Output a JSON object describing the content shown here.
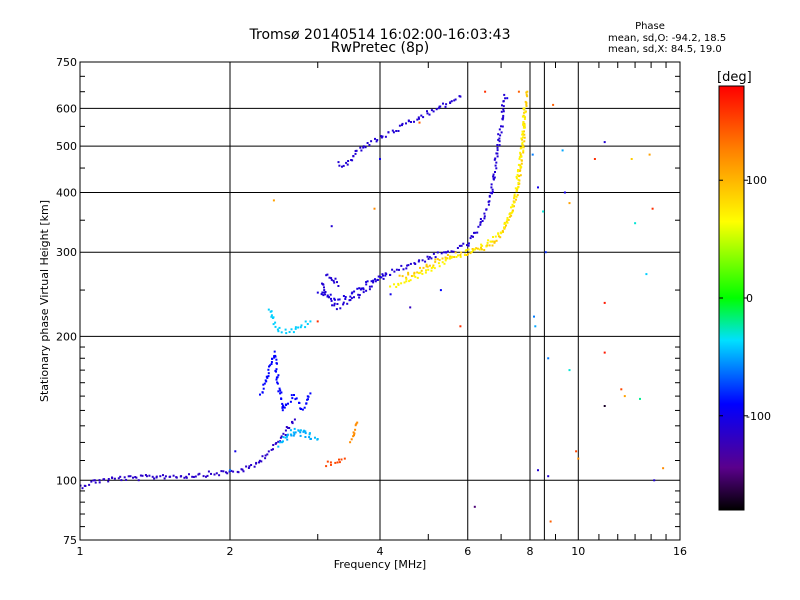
{
  "header": {
    "title_line1": "Tromsø 20140514 16:02:00-16:03:43",
    "title_line2": "RwPretec (8p)",
    "phase_title": "Phase",
    "phase_o": "mean, sd,O: -94.2, 18.5",
    "phase_x": "mean, sd,X:  84.5, 19.0"
  },
  "colorbar": {
    "label": "[deg]",
    "range": [
      -180,
      180
    ],
    "ticks": [
      "100",
      "0",
      "-100"
    ],
    "tick_values": [
      100,
      0,
      -100
    ]
  },
  "chart_data": {
    "type": "scatter",
    "title": "Tromsø 20140514 16:02:00-16:03:43",
    "subtitle": "RwPretec (8p)",
    "xlabel": "Frequency [MHz]",
    "ylabel": "Stationary phase Virtual Height [km]",
    "xscale": "log",
    "yscale": "log",
    "xlim": [
      1,
      16
    ],
    "ylim": [
      75,
      750
    ],
    "xticks": [
      1,
      2,
      4,
      6,
      8,
      10,
      16
    ],
    "xtick_labels": [
      "1",
      "2",
      "4",
      "6",
      "8",
      "10",
      "16"
    ],
    "yticks": [
      75,
      100,
      200,
      300,
      400,
      500,
      600,
      750
    ],
    "ytick_labels": [
      "75",
      "100",
      "200",
      "300",
      "400",
      "500",
      "600",
      "750"
    ],
    "grid": true,
    "color_by": "phase [deg]",
    "traces": [
      {
        "phase": -115,
        "points": [
          [
            1.0,
            97
          ],
          [
            1.05,
            99
          ],
          [
            1.1,
            100
          ],
          [
            1.2,
            101
          ],
          [
            1.3,
            101
          ],
          [
            1.45,
            102
          ],
          [
            1.6,
            102
          ],
          [
            1.8,
            103
          ],
          [
            2.0,
            104
          ],
          [
            2.1,
            105
          ],
          [
            2.2,
            106
          ],
          [
            2.3,
            110
          ],
          [
            2.4,
            115
          ],
          [
            2.5,
            120
          ],
          [
            2.6,
            128
          ],
          [
            2.7,
            134
          ]
        ]
      },
      {
        "phase": -40,
        "points": [
          [
            2.4,
            230
          ],
          [
            2.45,
            215
          ],
          [
            2.5,
            207
          ],
          [
            2.6,
            205
          ],
          [
            2.7,
            206
          ],
          [
            2.8,
            210
          ],
          [
            2.9,
            215
          ]
        ]
      },
      {
        "phase": -45,
        "points": [
          [
            2.5,
            118
          ],
          [
            2.6,
            124
          ],
          [
            2.7,
            128
          ],
          [
            2.8,
            127
          ],
          [
            2.9,
            124
          ],
          [
            3.0,
            122
          ]
        ]
      },
      {
        "phase": -110,
        "points": [
          [
            3.05,
            260
          ],
          [
            3.1,
            245
          ],
          [
            3.2,
            235
          ],
          [
            3.3,
            230
          ],
          [
            3.4,
            233
          ],
          [
            3.5,
            237
          ],
          [
            3.6,
            242
          ],
          [
            3.7,
            247
          ],
          [
            3.8,
            252
          ],
          [
            3.9,
            258
          ],
          [
            4.0,
            264
          ],
          [
            4.2,
            272
          ],
          [
            4.5,
            280
          ],
          [
            4.8,
            288
          ],
          [
            5.0,
            292
          ],
          [
            5.3,
            297
          ],
          [
            5.6,
            302
          ],
          [
            6.0,
            312
          ],
          [
            6.3,
            335
          ],
          [
            6.5,
            360
          ],
          [
            6.7,
            400
          ],
          [
            6.8,
            450
          ],
          [
            6.9,
            500
          ],
          [
            7.0,
            550
          ],
          [
            7.05,
            600
          ],
          [
            7.1,
            640
          ]
        ]
      },
      {
        "phase": -105,
        "points": [
          [
            3.0,
            245
          ],
          [
            3.1,
            248
          ],
          [
            3.2,
            240
          ],
          [
            3.3,
            238
          ],
          [
            3.5,
            245
          ],
          [
            3.7,
            255
          ],
          [
            3.9,
            262
          ],
          [
            4.1,
            268
          ]
        ]
      },
      {
        "phase": -110,
        "points": [
          [
            3.1,
            270
          ],
          [
            3.2,
            265
          ],
          [
            3.3,
            255
          ]
        ]
      },
      {
        "phase": -110,
        "points": [
          [
            3.3,
            460
          ],
          [
            3.4,
            455
          ],
          [
            3.5,
            465
          ],
          [
            3.6,
            490
          ],
          [
            3.8,
            505
          ],
          [
            4.0,
            520
          ],
          [
            4.3,
            540
          ],
          [
            4.6,
            560
          ],
          [
            5.0,
            585
          ],
          [
            5.4,
            610
          ],
          [
            5.8,
            635
          ]
        ]
      },
      {
        "phase": 90,
        "points": [
          [
            4.4,
            265
          ],
          [
            4.8,
            275
          ],
          [
            5.2,
            287
          ],
          [
            5.6,
            295
          ],
          [
            6.0,
            300
          ],
          [
            6.4,
            305
          ],
          [
            6.8,
            315
          ],
          [
            7.1,
            335
          ],
          [
            7.4,
            370
          ],
          [
            7.6,
            420
          ],
          [
            7.7,
            480
          ],
          [
            7.8,
            550
          ],
          [
            7.85,
            610
          ],
          [
            7.9,
            650
          ]
        ]
      },
      {
        "phase": 70,
        "points": [
          [
            4.2,
            255
          ],
          [
            4.5,
            260
          ],
          [
            5.0,
            275
          ],
          [
            5.5,
            290
          ],
          [
            6.0,
            300
          ],
          [
            6.5,
            310
          ],
          [
            7.0,
            330
          ],
          [
            7.3,
            360
          ],
          [
            7.5,
            400
          ],
          [
            7.65,
            460
          ],
          [
            7.75,
            520
          ],
          [
            7.8,
            600
          ]
        ]
      },
      {
        "phase": 150,
        "points": [
          [
            3.1,
            108
          ],
          [
            3.2,
            109
          ],
          [
            3.3,
            110
          ],
          [
            3.4,
            111
          ]
        ]
      },
      {
        "phase": 120,
        "points": [
          [
            3.5,
            120
          ],
          [
            3.55,
            125
          ],
          [
            3.6,
            132
          ]
        ]
      },
      {
        "phase": -50,
        "points": [
          [
            2.6,
            123
          ],
          [
            2.7,
            125
          ],
          [
            2.8,
            125
          ],
          [
            2.9,
            122
          ]
        ]
      },
      {
        "phase": -90,
        "points": [
          [
            2.3,
            150
          ],
          [
            2.35,
            160
          ],
          [
            2.4,
            172
          ],
          [
            2.45,
            185
          ],
          [
            2.5,
            160
          ],
          [
            2.55,
            140
          ],
          [
            2.6,
            145
          ],
          [
            2.7,
            150
          ],
          [
            2.8,
            140
          ],
          [
            2.9,
            152
          ]
        ]
      }
    ],
    "scattered_points": [
      [
        2.0,
        105,
        -60
      ],
      [
        2.05,
        115,
        -100
      ],
      [
        2.45,
        385,
        110
      ],
      [
        3.0,
        215,
        160
      ],
      [
        3.2,
        340,
        -110
      ],
      [
        3.9,
        370,
        120
      ],
      [
        4.0,
        470,
        -100
      ],
      [
        4.2,
        245,
        -100
      ],
      [
        4.6,
        230,
        -120
      ],
      [
        4.8,
        560,
        140
      ],
      [
        5.3,
        250,
        -90
      ],
      [
        5.8,
        210,
        160
      ],
      [
        6.2,
        88,
        -150
      ],
      [
        6.5,
        650,
        160
      ],
      [
        7.2,
        630,
        -100
      ],
      [
        7.6,
        650,
        140
      ],
      [
        8.1,
        480,
        -60
      ],
      [
        8.15,
        220,
        -60
      ],
      [
        8.2,
        210,
        -50
      ],
      [
        8.3,
        410,
        -100
      ],
      [
        8.3,
        105,
        -110
      ],
      [
        8.5,
        365,
        -30
      ],
      [
        8.6,
        300,
        -80
      ],
      [
        8.7,
        180,
        -60
      ],
      [
        8.7,
        102,
        -110
      ],
      [
        8.8,
        82,
        140
      ],
      [
        8.9,
        610,
        140
      ],
      [
        9.3,
        490,
        -50
      ],
      [
        9.4,
        400,
        -100
      ],
      [
        9.6,
        380,
        110
      ],
      [
        9.6,
        170,
        -30
      ],
      [
        9.9,
        115,
        150
      ],
      [
        10.0,
        111,
        120
      ],
      [
        10.8,
        470,
        160
      ],
      [
        11.3,
        510,
        -110
      ],
      [
        11.3,
        235,
        170
      ],
      [
        11.3,
        185,
        170
      ],
      [
        11.3,
        143,
        -170
      ],
      [
        12.2,
        155,
        150
      ],
      [
        12.4,
        150,
        110
      ],
      [
        12.8,
        470,
        90
      ],
      [
        13.0,
        345,
        -30
      ],
      [
        13.3,
        148,
        -20
      ],
      [
        13.7,
        270,
        -40
      ],
      [
        13.9,
        480,
        110
      ],
      [
        14.1,
        370,
        160
      ],
      [
        14.2,
        100,
        -110
      ],
      [
        14.8,
        106,
        120
      ]
    ]
  }
}
